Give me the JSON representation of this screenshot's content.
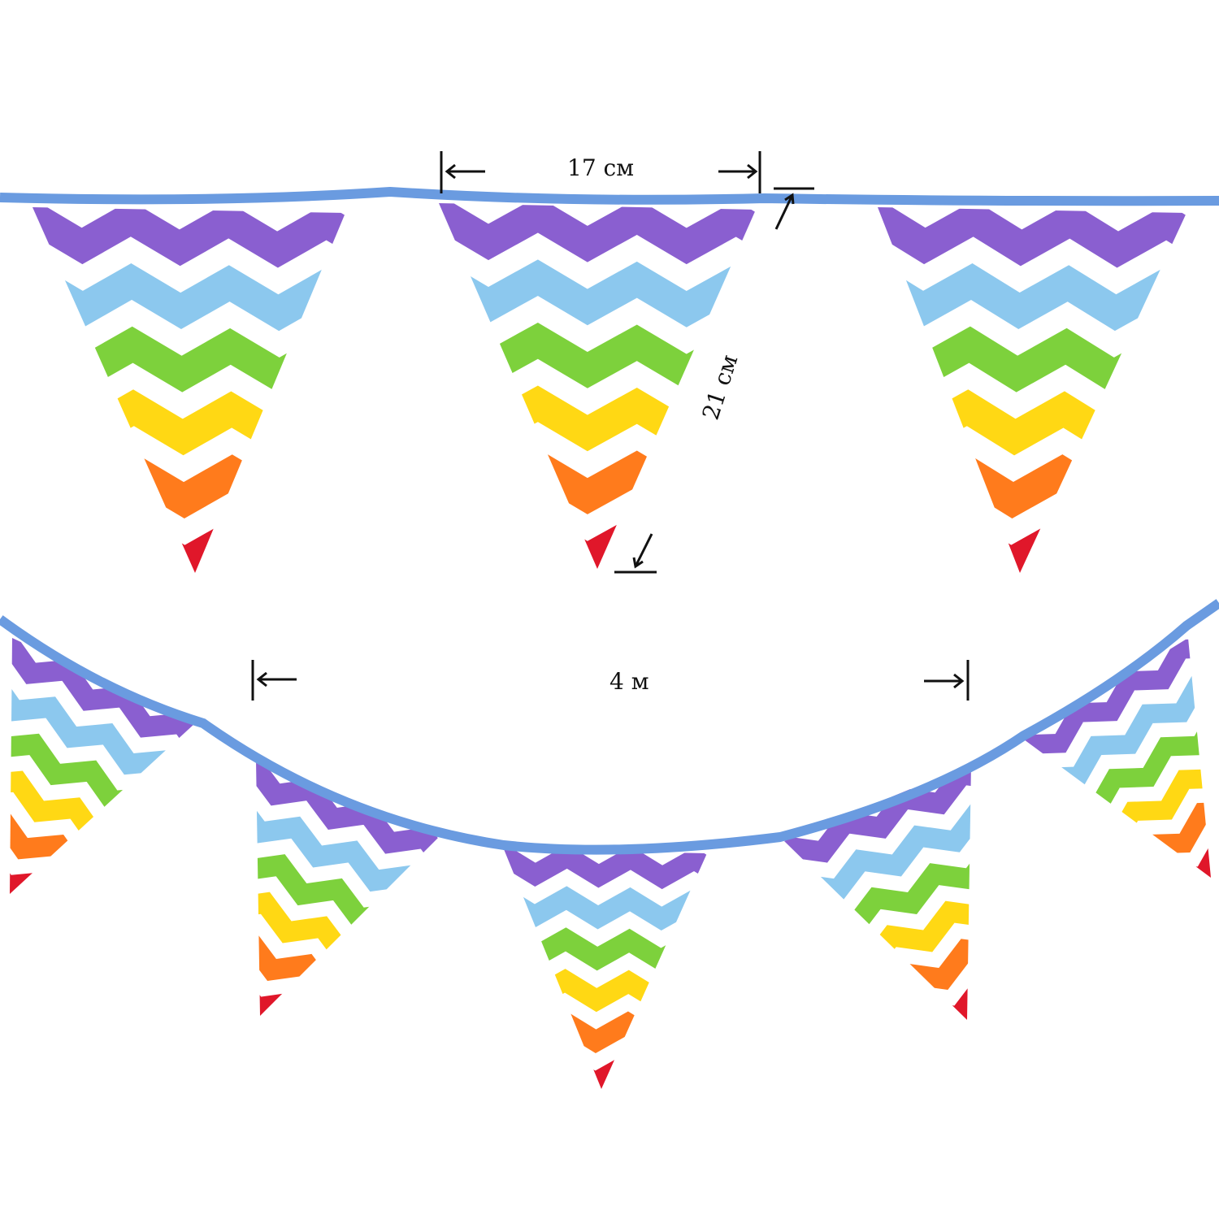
{
  "dimensions": {
    "flag_width": "17 см",
    "flag_height": "21 см",
    "total_length": "4 м"
  },
  "colors": {
    "tape": "#6a9be0",
    "stripes": [
      "#8a5fd0",
      "#8cc8ee",
      "#7dd13c",
      "#ffd814",
      "#ff7b1c",
      "#e0172a"
    ],
    "background": "#ffffff",
    "annotation": "#111111"
  },
  "pennant_count_visible": 8
}
